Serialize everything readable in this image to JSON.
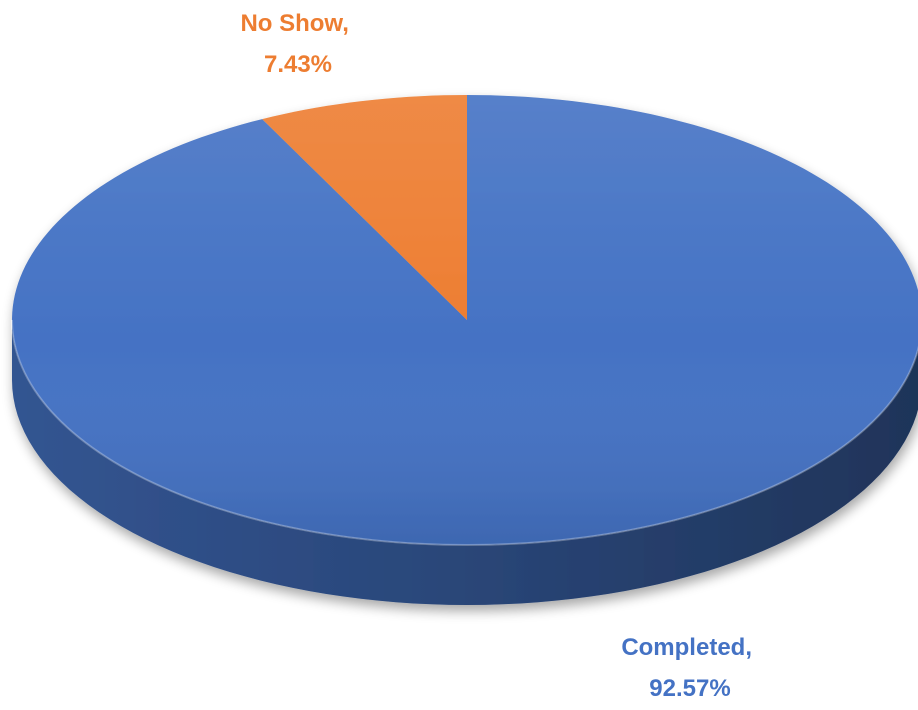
{
  "colors": {
    "background": "#ffffff",
    "completed": "#4472C4",
    "no_show": "#ED7D31"
  },
  "chart_data": {
    "type": "pie",
    "style": "3d",
    "title": "",
    "categories": [
      "Completed",
      "No Show"
    ],
    "values": [
      92.57,
      7.43
    ],
    "unit": "%",
    "legend": "none",
    "slices": [
      {
        "name": "Completed",
        "value": 92.57,
        "color": "#4472C4",
        "label_line1": "Completed,",
        "label_line2": "92.57%"
      },
      {
        "name": "No Show",
        "value": 7.43,
        "color": "#ED7D31",
        "label_line1": "No Show,",
        "label_line2": "7.43%"
      }
    ]
  }
}
